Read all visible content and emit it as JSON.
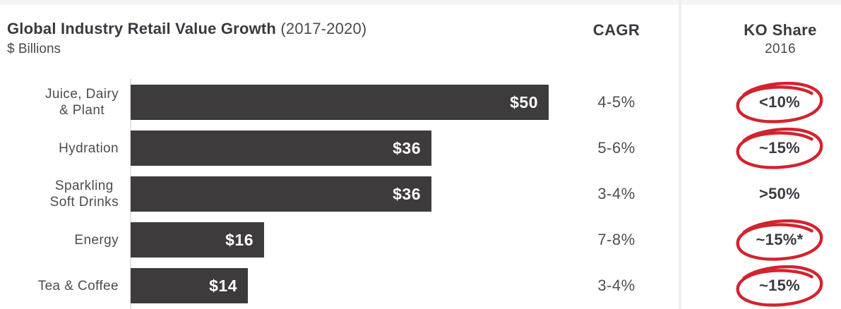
{
  "header": {
    "title": "Global Industry Retail Value Growth",
    "title_suffix": "(2017-2020)",
    "subtitle": "$ Billions",
    "cagr_label": "CAGR",
    "ko_share_label": "KO Share",
    "ko_share_year": "2016"
  },
  "colors": {
    "bar": "#3d3b3c",
    "annotation_red": "#d2232e",
    "divider": "#efefef",
    "axis": "#e3e3e3"
  },
  "chart_data": {
    "type": "bar",
    "orientation": "horizontal",
    "title": "Global Industry Retail Value Growth (2017-2020)",
    "unit": "$ Billions",
    "xlim": [
      0,
      50
    ],
    "grid": false,
    "legend": false,
    "rows": [
      {
        "category_lines": [
          "Juice, Dairy",
          "& Plant"
        ],
        "value": 50,
        "bar_label": "$50",
        "cagr": "4-5%",
        "ko_share": "<10%",
        "ko_circled": true
      },
      {
        "category_lines": [
          "Hydration"
        ],
        "value": 36,
        "bar_label": "$36",
        "cagr": "5-6%",
        "ko_share": "~15%",
        "ko_circled": true
      },
      {
        "category_lines": [
          "Sparkling",
          "Soft Drinks"
        ],
        "value": 36,
        "bar_label": "$36",
        "cagr": "3-4%",
        "ko_share": ">50%",
        "ko_circled": false
      },
      {
        "category_lines": [
          "Energy"
        ],
        "value": 16,
        "bar_label": "$16",
        "cagr": "7-8%",
        "ko_share": "~15%*",
        "ko_circled": true
      },
      {
        "category_lines": [
          "Tea & Coffee"
        ],
        "value": 14,
        "bar_label": "$14",
        "cagr": "3-4%",
        "ko_share": "~15%",
        "ko_circled": true
      }
    ]
  }
}
